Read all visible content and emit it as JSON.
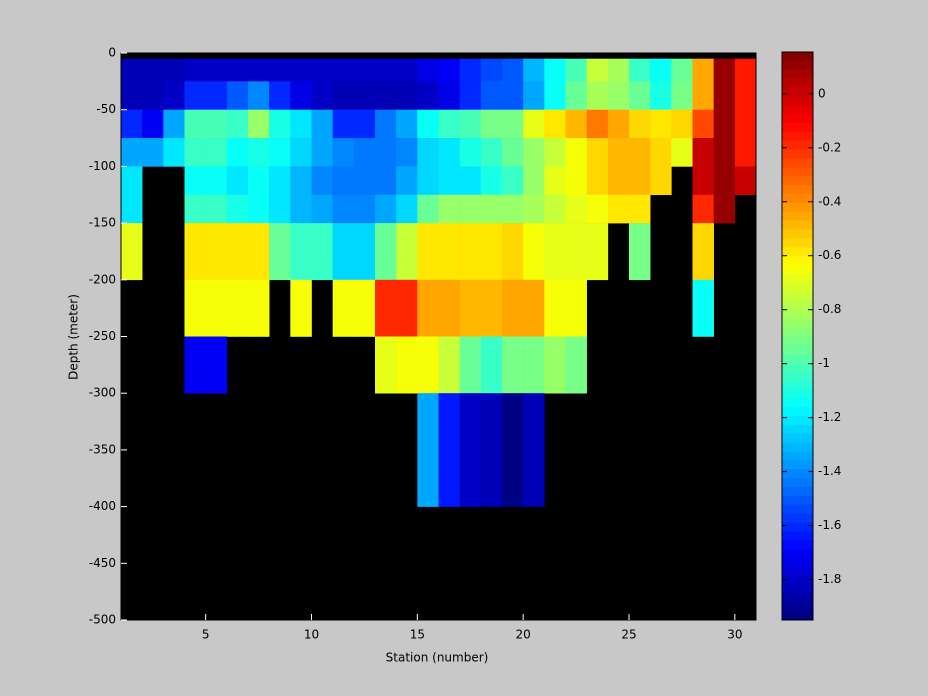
{
  "chart_data": {
    "type": "heatmap",
    "xlabel": "Station (number)",
    "ylabel": "Depth (meter)",
    "x": [
      1,
      2,
      3,
      4,
      5,
      6,
      7,
      8,
      9,
      10,
      11,
      12,
      13,
      14,
      15,
      16,
      17,
      18,
      19,
      20,
      21,
      22,
      23,
      24,
      25,
      26,
      27,
      28,
      29,
      30,
      31
    ],
    "y": [
      0,
      -5,
      -25,
      -50,
      -75,
      -100,
      -125,
      -150,
      -200,
      -250,
      -300,
      -400,
      -500
    ],
    "z": [
      [
        null,
        null,
        null,
        null,
        null,
        null,
        null,
        null,
        null,
        null,
        null,
        null,
        null,
        null,
        null,
        null,
        null,
        null,
        null,
        null,
        null,
        null,
        null,
        null,
        null,
        null,
        null,
        null,
        null,
        null
      ],
      [
        -1.85,
        -1.85,
        -1.85,
        -1.8,
        -1.8,
        -1.8,
        -1.8,
        -1.8,
        -1.8,
        -1.8,
        -1.8,
        -1.8,
        -1.8,
        -1.8,
        -1.75,
        -1.7,
        -1.6,
        -1.55,
        -1.5,
        -1.3,
        -1.15,
        -1.0,
        -0.75,
        -0.8,
        -1.05,
        -1.15,
        -0.95,
        -0.45,
        0.1,
        -0.15
      ],
      [
        -1.85,
        -1.85,
        -1.8,
        -1.6,
        -1.6,
        -1.5,
        -1.4,
        -1.6,
        -1.75,
        -1.8,
        -1.85,
        -1.85,
        -1.85,
        -1.85,
        -1.8,
        -1.75,
        -1.6,
        -1.5,
        -1.5,
        -1.35,
        -1.15,
        -0.95,
        -0.8,
        -0.85,
        -0.95,
        -1.1,
        -0.9,
        -0.45,
        0.1,
        -0.15
      ],
      [
        -1.6,
        -1.7,
        -1.35,
        -1.0,
        -1.0,
        -1.05,
        -0.85,
        -1.1,
        -1.2,
        -1.35,
        -1.6,
        -1.6,
        -1.45,
        -1.35,
        -1.15,
        -1.05,
        -1.0,
        -0.9,
        -0.9,
        -0.7,
        -0.6,
        -0.5,
        -0.35,
        -0.45,
        -0.55,
        -0.6,
        -0.55,
        -0.25,
        0.1,
        -0.15
      ],
      [
        -1.35,
        -1.35,
        -1.2,
        -1.05,
        -1.05,
        -1.15,
        -1.1,
        -1.15,
        -1.25,
        -1.35,
        -1.4,
        -1.45,
        -1.45,
        -1.4,
        -1.25,
        -1.2,
        -1.1,
        -1.05,
        -0.95,
        -0.85,
        -0.75,
        -0.65,
        -0.55,
        -0.5,
        -0.5,
        -0.55,
        -0.7,
        0.0,
        0.1,
        -0.15
      ],
      [
        -1.2,
        null,
        null,
        -1.15,
        -1.15,
        -1.2,
        -1.15,
        -1.2,
        -1.3,
        -1.4,
        -1.45,
        -1.45,
        -1.45,
        -1.35,
        -1.25,
        -1.2,
        -1.2,
        -1.1,
        -1.05,
        -0.85,
        -0.7,
        -0.65,
        -0.55,
        -0.5,
        -0.5,
        -0.55,
        null,
        0.0,
        0.1,
        0.0
      ],
      [
        -1.2,
        null,
        null,
        -1.05,
        -1.05,
        -1.1,
        -1.15,
        -1.2,
        -1.3,
        -1.35,
        -1.4,
        -1.4,
        -1.35,
        -1.25,
        -0.95,
        -0.85,
        -0.85,
        -0.85,
        -0.85,
        -0.8,
        -0.75,
        -0.7,
        -0.65,
        -0.6,
        -0.6,
        null,
        null,
        -0.2,
        0.1,
        null
      ],
      [
        -0.7,
        null,
        null,
        -0.6,
        -0.6,
        -0.6,
        -0.6,
        -0.95,
        -1.05,
        -1.05,
        -1.25,
        -1.25,
        -0.95,
        -0.75,
        -0.6,
        -0.6,
        -0.6,
        -0.6,
        -0.55,
        -0.65,
        -0.7,
        -0.7,
        -0.7,
        null,
        -0.9,
        null,
        null,
        -0.55,
        null,
        null
      ],
      [
        null,
        null,
        null,
        -0.65,
        -0.65,
        -0.65,
        -0.65,
        null,
        -0.65,
        null,
        -0.65,
        -0.65,
        -0.2,
        -0.2,
        -0.45,
        -0.45,
        -0.5,
        -0.5,
        -0.45,
        -0.45,
        -0.65,
        -0.65,
        null,
        null,
        null,
        null,
        null,
        -1.15,
        null,
        null
      ],
      [
        null,
        null,
        null,
        -1.7,
        -1.7,
        null,
        null,
        null,
        null,
        null,
        null,
        null,
        -0.7,
        -0.65,
        -0.65,
        -0.75,
        -0.95,
        -1.05,
        -0.9,
        -0.9,
        -0.85,
        -0.9,
        null,
        null,
        null,
        null,
        null,
        null,
        null,
        null
      ],
      [
        null,
        null,
        null,
        null,
        null,
        null,
        null,
        null,
        null,
        null,
        null,
        null,
        null,
        null,
        -1.35,
        -1.65,
        -1.8,
        -1.85,
        -1.95,
        -1.85,
        null,
        null,
        null,
        null,
        null,
        null,
        null,
        null,
        null,
        null
      ],
      [
        null,
        null,
        null,
        null,
        null,
        null,
        null,
        null,
        null,
        null,
        null,
        null,
        null,
        null,
        null,
        null,
        null,
        null,
        null,
        null,
        null,
        null,
        null,
        null,
        null,
        null,
        null,
        null,
        null,
        null
      ]
    ],
    "xlim": [
      1,
      31
    ],
    "ylim": [
      -500,
      0
    ],
    "xticks": [
      5,
      10,
      15,
      20,
      25,
      30
    ],
    "yticks": [
      0,
      -50,
      -100,
      -150,
      -200,
      -250,
      -300,
      -350,
      -400,
      -450,
      -500
    ],
    "colormap": "jet",
    "nan_color": "#000000",
    "clim": [
      -1.95,
      0.155
    ],
    "cticks": [
      -1.8,
      -1.6,
      -1.4,
      -1.2,
      -1,
      -0.8,
      -0.6,
      -0.4,
      -0.2,
      0
    ]
  }
}
